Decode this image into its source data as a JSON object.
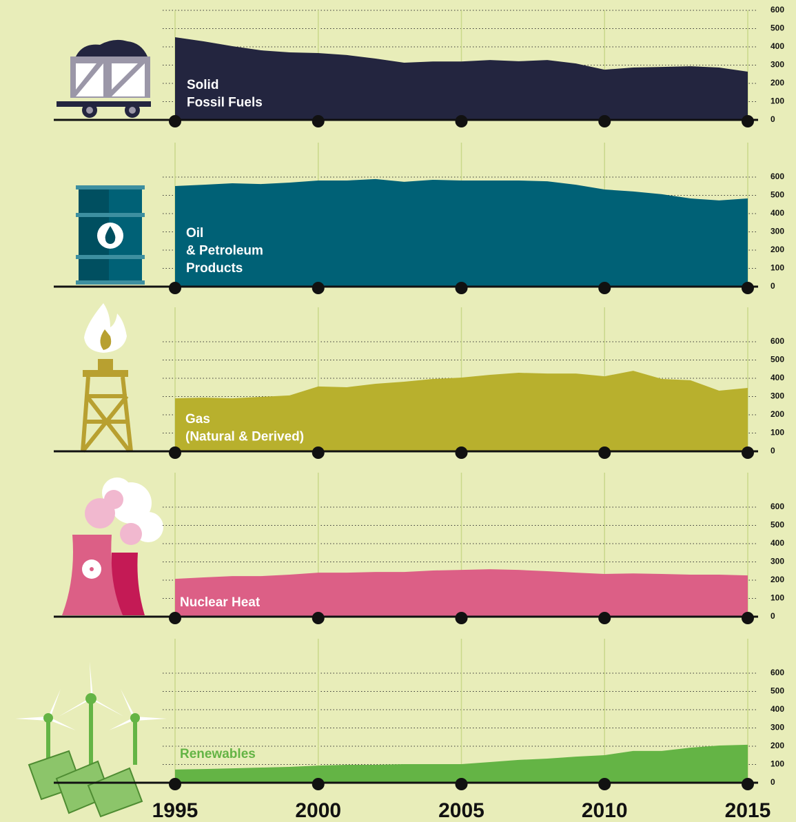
{
  "chart_data": [
    {
      "type": "area",
      "label_lines": [
        "Solid",
        "Fossil Fuels"
      ],
      "label_color": "#ffffff",
      "color": "#23253f",
      "x": [
        1995,
        1996,
        1997,
        1998,
        1999,
        2000,
        2001,
        2002,
        2003,
        2004,
        2005,
        2006,
        2007,
        2008,
        2009,
        2010,
        2011,
        2012,
        2013,
        2014,
        2015
      ],
      "values": [
        453,
        430,
        404,
        381,
        370,
        366,
        355,
        336,
        313,
        320,
        320,
        328,
        321,
        328,
        309,
        275,
        287,
        290,
        294,
        287,
        264
      ],
      "xlim": [
        1995,
        2015
      ],
      "xticks": [
        1995,
        2000,
        2005,
        2010,
        2015
      ],
      "ylim": [
        0,
        600
      ],
      "yticks": [
        0,
        100,
        200,
        300,
        400,
        500,
        600
      ],
      "grid": true
    },
    {
      "type": "area",
      "label_lines": [
        "Oil",
        "& Petroleum",
        "Products"
      ],
      "label_color": "#ffffff",
      "color": "#006176",
      "x": [
        1995,
        1996,
        1997,
        1998,
        1999,
        2000,
        2001,
        2002,
        2003,
        2004,
        2005,
        2006,
        2007,
        2008,
        2009,
        2010,
        2011,
        2012,
        2013,
        2014,
        2015
      ],
      "values": [
        551,
        558,
        566,
        562,
        570,
        581,
        581,
        589,
        574,
        585,
        581,
        581,
        581,
        577,
        558,
        532,
        521,
        506,
        483,
        472,
        483
      ],
      "xlim": [
        1995,
        2015
      ],
      "xticks": [
        1995,
        2000,
        2005,
        2010,
        2015
      ],
      "ylim": [
        0,
        600
      ],
      "yticks": [
        0,
        100,
        200,
        300,
        400,
        500,
        600
      ],
      "grid": true
    },
    {
      "type": "area",
      "label_lines": [
        "Gas",
        "(Natural & Derived)"
      ],
      "label_color": "#ffffff",
      "color": "#b8b02d",
      "x": [
        1995,
        1996,
        1997,
        1998,
        1999,
        2000,
        2001,
        2002,
        2003,
        2004,
        2005,
        2006,
        2007,
        2008,
        2009,
        2010,
        2011,
        2012,
        2013,
        2014,
        2015
      ],
      "values": [
        290,
        294,
        290,
        298,
        306,
        355,
        351,
        370,
        381,
        396,
        404,
        419,
        430,
        426,
        426,
        411,
        441,
        396,
        389,
        332,
        347
      ],
      "xlim": [
        1995,
        2015
      ],
      "xticks": [
        1995,
        2000,
        2005,
        2010,
        2015
      ],
      "ylim": [
        0,
        600
      ],
      "yticks": [
        0,
        100,
        200,
        300,
        400,
        500,
        600
      ],
      "grid": true
    },
    {
      "type": "area",
      "label_lines": [
        "Nuclear Heat"
      ],
      "label_color": "#ffffff",
      "color": "#dc5f86",
      "x": [
        1995,
        1996,
        1997,
        1998,
        1999,
        2000,
        2001,
        2002,
        2003,
        2004,
        2005,
        2006,
        2007,
        2008,
        2009,
        2010,
        2011,
        2012,
        2013,
        2014,
        2015
      ],
      "values": [
        207,
        215,
        222,
        222,
        230,
        241,
        241,
        245,
        245,
        253,
        256,
        260,
        256,
        249,
        241,
        234,
        237,
        234,
        230,
        230,
        226
      ],
      "xlim": [
        1995,
        2015
      ],
      "xticks": [
        1995,
        2000,
        2005,
        2010,
        2015
      ],
      "ylim": [
        0,
        600
      ],
      "yticks": [
        0,
        100,
        200,
        300,
        400,
        500,
        600
      ],
      "grid": true
    },
    {
      "type": "area",
      "label_lines": [
        "Renewables"
      ],
      "label_color": "#64b445",
      "color": "#64b445",
      "x": [
        1995,
        1996,
        1997,
        1998,
        1999,
        2000,
        2001,
        2002,
        2003,
        2004,
        2005,
        2006,
        2007,
        2008,
        2009,
        2010,
        2011,
        2012,
        2013,
        2014,
        2015
      ],
      "values": [
        72,
        75,
        79,
        83,
        87,
        94,
        98,
        98,
        102,
        102,
        102,
        113,
        125,
        132,
        143,
        151,
        174,
        174,
        192,
        204,
        208
      ],
      "xlim": [
        1995,
        2015
      ],
      "xticks": [
        1995,
        2000,
        2005,
        2010,
        2015
      ],
      "xtick_labels": true,
      "ylim": [
        0,
        600
      ],
      "yticks": [
        0,
        100,
        200,
        300,
        400,
        500,
        600
      ],
      "grid": true
    }
  ]
}
